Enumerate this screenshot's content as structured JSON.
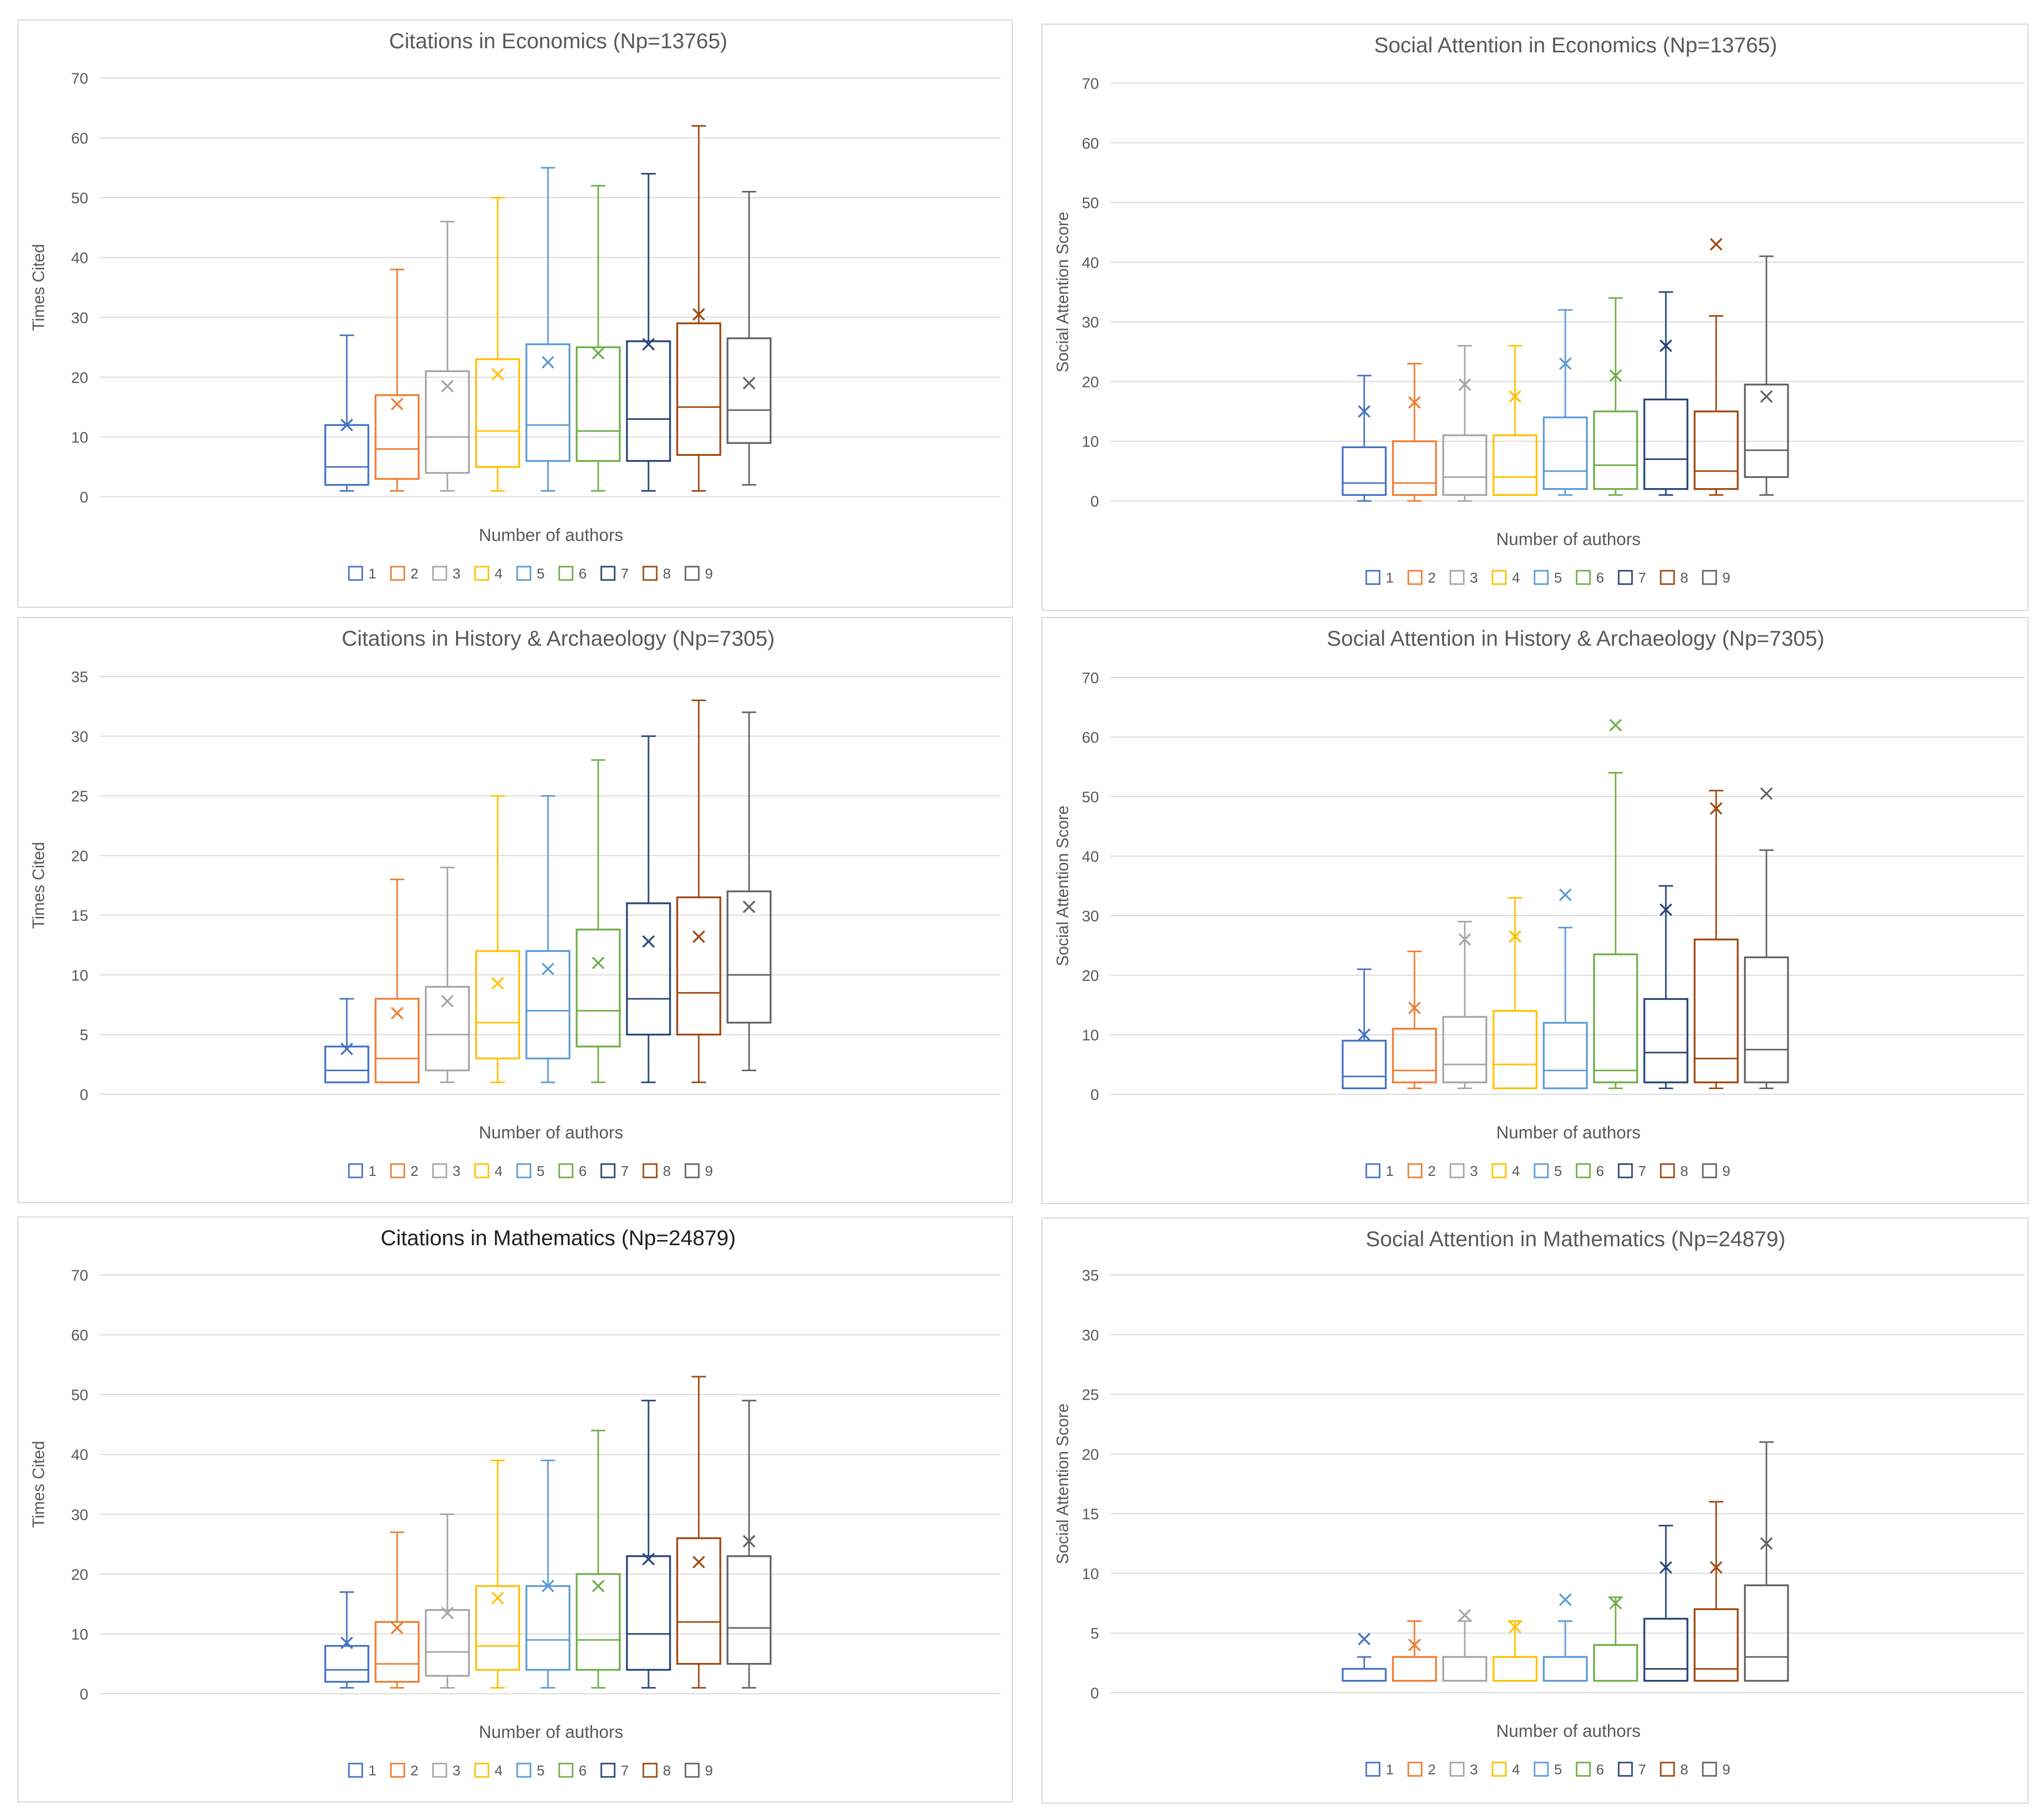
{
  "colors": {
    "1": "#4472c4",
    "2": "#ed7d31",
    "3": "#a5a5a5",
    "4": "#ffc000",
    "5": "#5b9bd5",
    "6": "#70ad47",
    "7": "#264478",
    "8": "#9e480e",
    "9": "#636363"
  },
  "legend_labels": [
    "1",
    "2",
    "3",
    "4",
    "5",
    "6",
    "7",
    "8",
    "9"
  ],
  "chart_data": [
    {
      "type": "box",
      "title": "Citations in Economics (Np=13765)",
      "xlabel": "Number of authors",
      "ylabel": "Times Cited",
      "ylim": [
        0,
        70
      ],
      "yticks": [
        0,
        10,
        20,
        30,
        40,
        50,
        60,
        70
      ],
      "grid": true,
      "legend": "bottom",
      "categories": [
        "1",
        "2",
        "3",
        "4",
        "5",
        "6",
        "7",
        "8",
        "9"
      ],
      "boxes": [
        {
          "min": 1,
          "q1": 2,
          "median": 5,
          "q3": 12,
          "max": 27,
          "mean": 12
        },
        {
          "min": 1,
          "q1": 3,
          "median": 8,
          "q3": 17,
          "max": 38,
          "mean": 15.5
        },
        {
          "min": 1,
          "q1": 4,
          "median": 10,
          "q3": 21,
          "max": 46,
          "mean": 18.5
        },
        {
          "min": 1,
          "q1": 5,
          "median": 11,
          "q3": 23,
          "max": 50,
          "mean": 20.5
        },
        {
          "min": 1,
          "q1": 6,
          "median": 12,
          "q3": 25.5,
          "max": 55,
          "mean": 22.5
        },
        {
          "min": 1,
          "q1": 6,
          "median": 11,
          "q3": 25,
          "max": 52,
          "mean": 24
        },
        {
          "min": 1,
          "q1": 6,
          "median": 13,
          "q3": 26,
          "max": 54,
          "mean": 25.5
        },
        {
          "min": 1,
          "q1": 7,
          "median": 15,
          "q3": 29,
          "max": 62,
          "mean": 30.5
        },
        {
          "min": 2,
          "q1": 9,
          "median": 14.5,
          "q3": 26.5,
          "max": 51,
          "mean": 19
        }
      ]
    },
    {
      "type": "box",
      "title": "Social Attention in Economics (Np=13765)",
      "xlabel": "Number of authors",
      "ylabel": "Social Attention Score",
      "ylim": [
        0,
        70
      ],
      "yticks": [
        0,
        10,
        20,
        30,
        40,
        50,
        60,
        70
      ],
      "grid": true,
      "legend": "bottom",
      "categories": [
        "1",
        "2",
        "3",
        "4",
        "5",
        "6",
        "7",
        "8",
        "9"
      ],
      "boxes": [
        {
          "min": 0,
          "q1": 1,
          "median": 3,
          "q3": 9,
          "max": 21,
          "mean": 15
        },
        {
          "min": 0,
          "q1": 1,
          "median": 3,
          "q3": 10,
          "max": 23,
          "mean": 16.5
        },
        {
          "min": 0,
          "q1": 1,
          "median": 4,
          "q3": 11,
          "max": 26,
          "mean": 19.5
        },
        {
          "min": 1,
          "q1": 1,
          "median": 4,
          "q3": 11,
          "max": 26,
          "mean": 17.5
        },
        {
          "min": 1,
          "q1": 2,
          "median": 5,
          "q3": 14,
          "max": 32,
          "mean": 23
        },
        {
          "min": 1,
          "q1": 2,
          "median": 6,
          "q3": 15,
          "max": 34,
          "mean": 21
        },
        {
          "min": 1,
          "q1": 2,
          "median": 7,
          "q3": 17,
          "max": 35,
          "mean": 26
        },
        {
          "min": 1,
          "q1": 2,
          "median": 5,
          "q3": 15,
          "max": 31,
          "mean": 43
        },
        {
          "min": 1,
          "q1": 4,
          "median": 8.5,
          "q3": 19.5,
          "max": 41,
          "mean": 17.5
        }
      ]
    },
    {
      "type": "box",
      "title": "Citations in History & Archaeology (Np=7305)",
      "xlabel": "Number of authors",
      "ylabel": "Times Cited",
      "ylim": [
        0,
        35
      ],
      "yticks": [
        0,
        5,
        10,
        15,
        20,
        25,
        30,
        35
      ],
      "grid": true,
      "legend": "bottom",
      "categories": [
        "1",
        "2",
        "3",
        "4",
        "5",
        "6",
        "7",
        "8",
        "9"
      ],
      "boxes": [
        {
          "min": 1,
          "q1": 1,
          "median": 2,
          "q3": 4,
          "max": 8,
          "mean": 3.8
        },
        {
          "min": 1,
          "q1": 1,
          "median": 3,
          "q3": 8,
          "max": 18,
          "mean": 6.8
        },
        {
          "min": 1,
          "q1": 2,
          "median": 5,
          "q3": 9,
          "max": 19,
          "mean": 7.8
        },
        {
          "min": 1,
          "q1": 3,
          "median": 6,
          "q3": 12,
          "max": 25,
          "mean": 9.3
        },
        {
          "min": 1,
          "q1": 3,
          "median": 7,
          "q3": 12,
          "max": 25,
          "mean": 10.5
        },
        {
          "min": 1,
          "q1": 4,
          "median": 7,
          "q3": 13.8,
          "max": 28,
          "mean": 11
        },
        {
          "min": 1,
          "q1": 5,
          "median": 8,
          "q3": 16,
          "max": 30,
          "mean": 12.8
        },
        {
          "min": 1,
          "q1": 5,
          "median": 8.5,
          "q3": 16.5,
          "max": 33,
          "mean": 13.2
        },
        {
          "min": 2,
          "q1": 6,
          "median": 10,
          "q3": 17,
          "max": 32,
          "mean": 15.7
        }
      ]
    },
    {
      "type": "box",
      "title": "Social Attention in History & Archaeology (Np=7305)",
      "xlabel": "Number of authors",
      "ylabel": "Social Attention Score",
      "ylim": [
        0,
        70
      ],
      "yticks": [
        0,
        10,
        20,
        30,
        40,
        50,
        60,
        70
      ],
      "grid": true,
      "legend": "bottom",
      "categories": [
        "1",
        "2",
        "3",
        "4",
        "5",
        "6",
        "7",
        "8",
        "9"
      ],
      "boxes": [
        {
          "min": 1,
          "q1": 1,
          "median": 3,
          "q3": 9,
          "max": 21,
          "mean": 10
        },
        {
          "min": 1,
          "q1": 2,
          "median": 4,
          "q3": 11,
          "max": 24,
          "mean": 14.5
        },
        {
          "min": 1,
          "q1": 2,
          "median": 5,
          "q3": 13,
          "max": 29,
          "mean": 26
        },
        {
          "min": 1,
          "q1": 1,
          "median": 5,
          "q3": 14,
          "max": 33,
          "mean": 26.5
        },
        {
          "min": 1,
          "q1": 1,
          "median": 4,
          "q3": 12,
          "max": 28,
          "mean": 33.5
        },
        {
          "min": 1,
          "q1": 2,
          "median": 4,
          "q3": 23.5,
          "max": 54,
          "mean": 62
        },
        {
          "min": 1,
          "q1": 2,
          "median": 7,
          "q3": 16,
          "max": 35,
          "mean": 31
        },
        {
          "min": 1,
          "q1": 2,
          "median": 6,
          "q3": 26,
          "max": 51,
          "mean": 48
        },
        {
          "min": 1,
          "q1": 2,
          "median": 7.5,
          "q3": 23,
          "max": 41,
          "mean": 50.5
        }
      ]
    },
    {
      "type": "box",
      "title": "Citations in Mathematics (Np=24879)",
      "xlabel": "Number of authors",
      "ylabel": "Times Cited",
      "ylim": [
        0,
        70
      ],
      "yticks": [
        0,
        10,
        20,
        30,
        40,
        50,
        60,
        70
      ],
      "grid": true,
      "legend": "bottom",
      "categories": [
        "1",
        "2",
        "3",
        "4",
        "5",
        "6",
        "7",
        "8",
        "9"
      ],
      "boxes": [
        {
          "min": 1,
          "q1": 2,
          "median": 4,
          "q3": 8,
          "max": 17,
          "mean": 8.5
        },
        {
          "min": 1,
          "q1": 2,
          "median": 5,
          "q3": 12,
          "max": 27,
          "mean": 11
        },
        {
          "min": 1,
          "q1": 3,
          "median": 7,
          "q3": 14,
          "max": 30,
          "mean": 13.5
        },
        {
          "min": 1,
          "q1": 4,
          "median": 8,
          "q3": 18,
          "max": 39,
          "mean": 16
        },
        {
          "min": 1,
          "q1": 4,
          "median": 9,
          "q3": 18,
          "max": 39,
          "mean": 18
        },
        {
          "min": 1,
          "q1": 4,
          "median": 9,
          "q3": 20,
          "max": 44,
          "mean": 18
        },
        {
          "min": 1,
          "q1": 4,
          "median": 10,
          "q3": 23,
          "max": 49,
          "mean": 22.5
        },
        {
          "min": 1,
          "q1": 5,
          "median": 12,
          "q3": 26,
          "max": 53,
          "mean": 22
        },
        {
          "min": 1,
          "q1": 5,
          "median": 11,
          "q3": 23,
          "max": 49,
          "mean": 25.5
        }
      ]
    },
    {
      "type": "box",
      "title": "Social Attention in Mathematics (Np=24879)",
      "xlabel": "Number of authors",
      "ylabel": "Social Attention Score",
      "ylim": [
        0,
        35
      ],
      "yticks": [
        0,
        5,
        10,
        15,
        20,
        25,
        30,
        35
      ],
      "grid": true,
      "legend": "bottom",
      "categories": [
        "1",
        "2",
        "3",
        "4",
        "5",
        "6",
        "7",
        "8",
        "9"
      ],
      "boxes": [
        {
          "min": 1,
          "q1": 1,
          "median": 1,
          "q3": 2,
          "max": 3,
          "mean": 4.5
        },
        {
          "min": 1,
          "q1": 1,
          "median": 1,
          "q3": 3,
          "max": 6,
          "mean": 4
        },
        {
          "min": 1,
          "q1": 1,
          "median": 1,
          "q3": 3,
          "max": 6,
          "mean": 6.5
        },
        {
          "min": 1,
          "q1": 1,
          "median": 1,
          "q3": 3,
          "max": 6,
          "mean": 5.5
        },
        {
          "min": 1,
          "q1": 1,
          "median": 1,
          "q3": 3,
          "max": 6,
          "mean": 7.8
        },
        {
          "min": 1,
          "q1": 1,
          "median": 1,
          "q3": 4,
          "max": 8,
          "mean": 7.5
        },
        {
          "min": 1,
          "q1": 1,
          "median": 2,
          "q3": 6.2,
          "max": 14,
          "mean": 10.5
        },
        {
          "min": 1,
          "q1": 1,
          "median": 2,
          "q3": 7,
          "max": 16,
          "mean": 10.5
        },
        {
          "min": 1,
          "q1": 1,
          "median": 3,
          "q3": 9,
          "max": 21,
          "mean": 12.5
        }
      ]
    }
  ]
}
